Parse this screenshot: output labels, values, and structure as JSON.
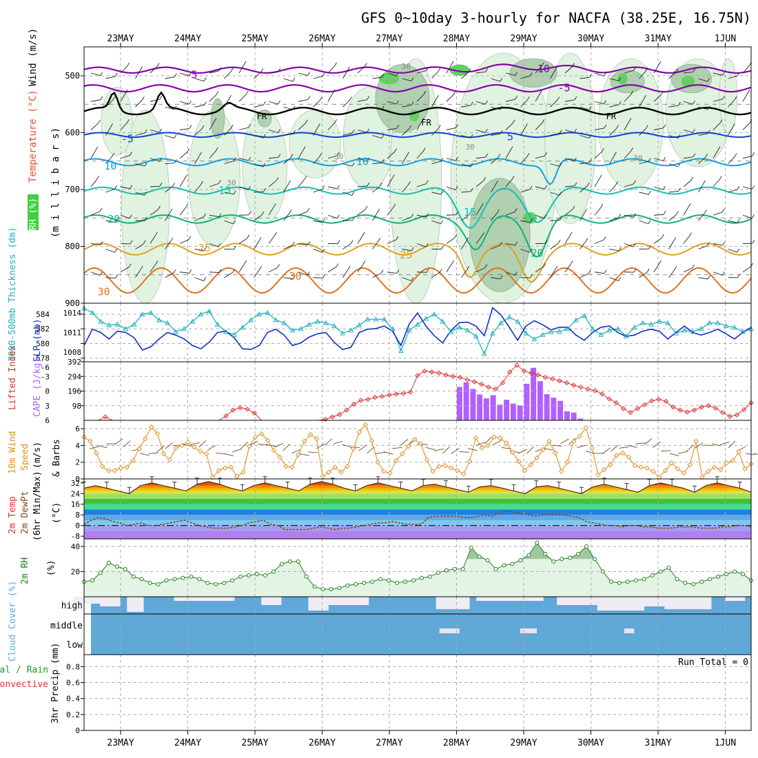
{
  "chart_data": {
    "type": "meteogram",
    "title": "GFS 0~10day 3-hourly for NACFA (38.25E, 16.75N)",
    "dates": [
      "23MAY",
      "24MAY",
      "25MAY",
      "26MAY",
      "27MAY",
      "28MAY",
      "29MAY",
      "30MAY",
      "31MAY",
      "1JUN"
    ],
    "colors": {
      "temp_lines": [
        "#8800aa",
        "#8800aa",
        "#1040d0",
        "#10a0e0",
        "#10c0b0",
        "#10b080",
        "#e0a020",
        "#e07020",
        "#d01080"
      ],
      "rh_light": "#e0f2e0",
      "rh_mid": "#b0d0b0",
      "rh_dark": "#80a080",
      "rh_green": "#60d060",
      "slp": "#1030c0",
      "thickness": "#20b0c0",
      "lifted": "#e03030",
      "cape": "#b060ff",
      "wind10": "#e09020",
      "rh2m": "#208020",
      "cloud": "#60a8d8",
      "precip_total": "#20a020",
      "precip_conv": "#e03030"
    },
    "panels": {
      "upper": {
        "ylabel_parts": [
          "RH (%)",
          "Temperature (°C)",
          "Wind (m/s)",
          "(m i l l i b a r s)"
        ],
        "yticks": [
          500,
          600,
          700,
          800,
          900
        ],
        "temp_labels": [
          {
            "text": "-5",
            "x": 1.05,
            "p": 498
          },
          {
            "text": "-10",
            "x": 6.25,
            "p": 488
          },
          {
            "text": "-5",
            "x": 6.6,
            "p": 521
          },
          {
            "text": "FR",
            "x": 2.1,
            "p": 570
          },
          {
            "text": "FR",
            "x": 4.55,
            "p": 581
          },
          {
            "text": "FR",
            "x": 7.3,
            "p": 570
          },
          {
            "text": "-5",
            "x": 0.1,
            "p": 611
          },
          {
            "text": "5",
            "x": 5.8,
            "p": 607
          },
          {
            "text": "10",
            "x": -0.15,
            "p": 659
          },
          {
            "text": "10",
            "x": 3.6,
            "p": 651
          },
          {
            "text": "15",
            "x": 1.55,
            "p": 702
          },
          {
            "text": "15",
            "x": 5.2,
            "p": 740
          },
          {
            "text": "20",
            "x": -0.1,
            "p": 752
          },
          {
            "text": "20",
            "x": 6.2,
            "p": 812
          },
          {
            "text": "25",
            "x": 1.25,
            "p": 803
          },
          {
            "text": "25",
            "x": 4.25,
            "p": 815
          },
          {
            "text": "30",
            "x": 2.6,
            "p": 853
          },
          {
            "text": "30",
            "x": -0.25,
            "p": 880
          }
        ],
        "rh_labels": [
          {
            "text": "30",
            "x": 1.65,
            "p": 688
          },
          {
            "text": "30",
            "x": 3.25,
            "p": 642
          },
          {
            "text": "30",
            "x": 5.2,
            "p": 625
          },
          {
            "text": "30",
            "x": 7.7,
            "p": 644
          },
          {
            "text": "30",
            "x": 4.25,
            "p": 483
          }
        ]
      },
      "thickness_slp": {
        "ylabel_left": "1000-500mb Thickness (dm)",
        "ylabel_right": "SLP (mb)",
        "thickness_ticks": [
          578,
          580,
          582,
          584
        ],
        "slp_ticks": [
          1008,
          1011,
          1014
        ],
        "thickness": [
          584.8,
          584.2,
          583.0,
          582.5,
          582.6,
          582.0,
          582.6,
          584.0,
          584.2,
          583.2,
          582.8,
          581.6,
          582.0,
          583.0,
          584.0,
          584.4,
          582.6,
          581.6,
          581.2,
          582.2,
          583.2,
          584.0,
          584.2,
          583.2,
          582.8,
          581.8,
          582.0,
          582.6,
          583.0,
          582.8,
          582.4,
          581.4,
          581.8,
          582.5,
          583.3,
          583.3,
          583.3,
          582.0,
          579.0,
          581.8,
          582.6,
          583.4,
          584.0,
          583.0,
          581.6,
          582.2,
          581.8,
          581.0,
          578.6,
          581.4,
          582.8,
          583.6,
          583.0,
          581.4,
          580.6,
          581.2,
          581.6,
          581.6,
          582.0,
          583.2,
          583.8,
          582.0,
          581.2,
          581.8,
          582.0,
          581.0,
          582.2,
          582.8,
          582.6,
          583.0,
          582.8,
          581.4,
          581.8,
          581.6,
          582.0,
          582.8,
          582.8,
          582.4,
          582.2,
          581.6,
          582.0
        ],
        "slp": [
          1009.0,
          1011.5,
          1011.0,
          1010.0,
          1011.2,
          1011.0,
          1010.2,
          1008.3,
          1008.8,
          1010.0,
          1011.0,
          1010.6,
          1010.0,
          1009.0,
          1008.5,
          1009.5,
          1011.0,
          1011.2,
          1010.2,
          1008.5,
          1008.4,
          1009.0,
          1011.0,
          1011.5,
          1010.6,
          1009.0,
          1009.4,
          1010.3,
          1010.8,
          1011.0,
          1009.5,
          1008.4,
          1008.7,
          1011.0,
          1011.5,
          1011.6,
          1012.0,
          1011.2,
          1009.0,
          1012.3,
          1014.0,
          1012.0,
          1010.5,
          1009.4,
          1011.3,
          1012.5,
          1012.6,
          1012.0,
          1010.5,
          1014.8,
          1013.7,
          1011.8,
          1009.8,
          1012.0,
          1012.8,
          1012.2,
          1011.4,
          1011.8,
          1011.8,
          1010.6,
          1009.8,
          1011.0,
          1011.8,
          1012.0,
          1011.0,
          1010.4,
          1010.6,
          1011.2,
          1011.5,
          1011.2,
          1010.0,
          1011.0,
          1012.0,
          1011.0,
          1010.6,
          1011.0,
          1011.5,
          1010.8,
          1010.0,
          1011.0,
          1011.8
        ]
      },
      "lifted_cape": {
        "ylabel_left": "Lifted Index",
        "ylabel_right": "CAPE (J/kg)",
        "li_ticks": [
          -3,
          0,
          3,
          6
        ],
        "li_tick_labels": [
          "-3",
          "0",
          "3",
          "6"
        ],
        "li_top_label": "-6",
        "cape_ticks": [
          98,
          196,
          294,
          392
        ],
        "lifted": [
          8,
          8,
          8,
          5.3,
          6.0,
          7,
          8,
          8,
          8,
          8,
          8,
          8,
          8,
          8,
          8,
          8,
          8,
          8,
          8,
          6.1,
          5.1,
          3.9,
          3.4,
          3.7,
          4.5,
          6.3,
          7.5,
          8,
          8,
          8,
          8,
          8,
          6.7,
          6.2,
          5.8,
          5.3,
          4.8,
          3.9,
          2.7,
          1.9,
          1.7,
          1.3,
          1.1,
          0.8,
          0.6,
          0.5,
          0.2,
          -3.2,
          -4.1,
          -3.9,
          -3.7,
          -3.3,
          -3.0,
          -2.8,
          -2.3,
          -1.9,
          -1.4,
          -0.8,
          -0.4,
          -1.7,
          -3.9,
          -5.3,
          -4.1,
          -3.7,
          -3.3,
          -2.8,
          -2.5,
          -2.1,
          -1.7,
          -1.2,
          -0.8,
          -0.4,
          -0.1,
          0.6,
          1.6,
          2.4,
          3.6,
          4.4,
          3.6,
          2.8,
          2.0,
          1.7,
          2.1,
          3.3,
          3.9,
          4.3,
          3.9,
          3.3,
          3.0,
          3.5,
          4.4,
          5.2,
          4.9,
          3.8,
          2.4
        ],
        "cape_bars": [
          [
            5.25,
            224
          ],
          [
            5.35,
            254
          ],
          [
            5.45,
            210
          ],
          [
            5.55,
            173
          ],
          [
            5.65,
            147
          ],
          [
            5.75,
            168
          ],
          [
            5.85,
            105
          ],
          [
            5.95,
            138
          ],
          [
            6.05,
            112
          ],
          [
            6.15,
            100
          ],
          [
            6.25,
            245
          ],
          [
            6.35,
            352
          ],
          [
            6.45,
            262
          ],
          [
            6.55,
            175
          ],
          [
            6.65,
            152
          ],
          [
            6.75,
            130
          ],
          [
            6.85,
            60
          ],
          [
            6.95,
            52
          ],
          [
            7.05,
            12
          ],
          [
            7.15,
            0
          ]
        ]
      },
      "wind10": {
        "ylabel": "10m Wind Speed (m/s) & Barbs",
        "yticks": [
          0,
          2,
          4,
          6
        ],
        "speed": [
          5.0,
          4.5,
          3.1,
          1.5,
          1.0,
          1.0,
          1.3,
          1.4,
          2.2,
          3.6,
          4.8,
          6.2,
          5.4,
          3.0,
          2.3,
          3.7,
          4.0,
          4.4,
          3.8,
          3.3,
          3.0,
          0.2,
          1.0,
          1.3,
          1.4,
          0.3,
          0.8,
          3.9,
          5.0,
          5.4,
          4.6,
          3.4,
          2.6,
          1.5,
          1.4,
          2.9,
          4.5,
          5.3,
          4.8,
          0.3,
          0.8,
          1.4,
          0.8,
          1.5,
          3.6,
          5.6,
          6.5,
          4.6,
          2.0,
          0.9,
          0.7,
          2.2,
          3.0,
          3.9,
          4.7,
          4.2,
          2.3,
          0.9,
          1.5,
          1.6,
          1.3,
          1.0,
          0.6,
          2.1,
          4.9,
          3.7,
          4.0,
          5.0,
          4.9,
          4.3,
          3.2,
          2.1,
          1.0,
          1.7,
          2.5,
          3.5,
          4.5,
          3.1,
          0.9,
          2.0,
          4.5,
          5.1,
          6.1,
          3.7,
          0.5,
          1.1,
          1.7,
          2.8,
          3.1,
          2.6,
          1.6,
          1.4,
          1.3,
          0.9,
          0.2,
          1.0,
          1.9,
          1.2,
          0.7,
          1.7,
          4.5,
          0.2,
          0.9,
          1.4,
          1.1,
          1.9,
          2.2,
          3.2,
          1.2,
          1.8
        ]
      },
      "temp2m": {
        "ylabel": "2m Temp 2m DewPt (6hr Min/Max) (°C)",
        "yticks": [
          -8,
          0,
          8,
          16,
          24,
          32
        ],
        "temp_max": [
          28,
          30,
          28,
          26,
          24,
          30,
          32,
          30,
          28,
          26,
          31,
          33,
          31,
          28,
          26,
          30,
          32,
          30,
          28,
          26,
          31,
          33,
          31,
          28,
          26,
          30,
          32,
          30,
          28,
          26,
          30,
          31,
          29,
          27,
          25,
          29,
          30,
          28,
          26,
          24,
          29,
          30,
          28,
          26,
          24,
          29,
          31,
          29,
          27,
          25,
          30,
          32,
          30,
          28,
          25,
          30,
          32,
          30,
          28,
          25
        ],
        "dewpt": [
          1,
          4,
          6,
          5,
          3,
          2,
          0,
          1,
          2,
          0,
          0,
          1,
          2,
          3,
          4,
          2,
          0,
          -1,
          -2,
          -2,
          -2,
          -1,
          0,
          2,
          3,
          4,
          1,
          0,
          -3,
          -3,
          -3,
          -3,
          -2,
          -1,
          -2,
          -3,
          -2,
          -2,
          -1,
          0,
          1,
          2,
          2,
          3,
          2,
          1,
          1,
          1,
          6,
          7,
          7,
          7,
          7,
          6,
          6,
          7,
          8,
          7,
          10,
          11,
          10,
          9,
          8,
          7,
          8,
          8,
          8,
          8,
          7,
          6,
          3,
          2,
          1,
          0,
          0,
          -1,
          0,
          0,
          -1,
          -1,
          -2,
          -2,
          -2,
          -1,
          -1,
          -1,
          -2,
          -2,
          -2,
          -1,
          -1,
          0,
          0,
          -1
        ]
      },
      "rh2m": {
        "ylabel": "2m RH (%)",
        "yticks": [
          20,
          40
        ],
        "values": [
          12,
          13,
          19,
          27,
          24,
          22,
          16,
          14,
          11,
          10,
          13,
          14,
          15,
          16,
          14,
          11,
          10,
          11,
          13,
          16,
          17,
          18,
          17,
          20,
          26,
          28,
          28,
          16,
          8,
          6,
          6,
          7,
          9,
          10,
          11,
          12,
          14,
          13,
          11,
          12,
          13,
          15,
          16,
          19,
          21,
          22,
          22,
          39,
          32,
          29,
          22,
          25,
          26,
          29,
          33,
          43,
          34,
          28,
          30,
          31,
          34,
          40,
          30,
          20,
          12,
          11,
          12,
          13,
          14,
          17,
          20,
          23,
          14,
          11,
          10,
          12,
          14,
          16,
          18,
          20,
          18,
          13
        ],
        "rh2m_pts": [
          0,
          0.1
        ]
      },
      "cloud": {
        "ylabel": "Cloud Cover (%)",
        "levels": [
          "high",
          "middle",
          "low"
        ]
      },
      "precip": {
        "ylabel_parts": [
          "Total / Rain",
          "Convective",
          "3hr Precip (mm)"
        ],
        "yticks": [
          0,
          0.2,
          0.4,
          0.6,
          0.8
        ],
        "run_total": "Run Total = 0"
      }
    }
  }
}
